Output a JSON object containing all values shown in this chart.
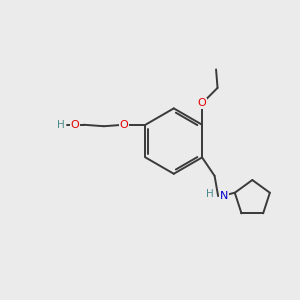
{
  "background_color": "#ebebeb",
  "bond_color": "#3a3a3a",
  "atom_colors": {
    "O": "#e60000",
    "N": "#0000cc",
    "H_O": "#4a8a8a",
    "C": "#3a3a3a"
  },
  "figsize": [
    3.0,
    3.0
  ],
  "dpi": 100,
  "lw": 1.4
}
